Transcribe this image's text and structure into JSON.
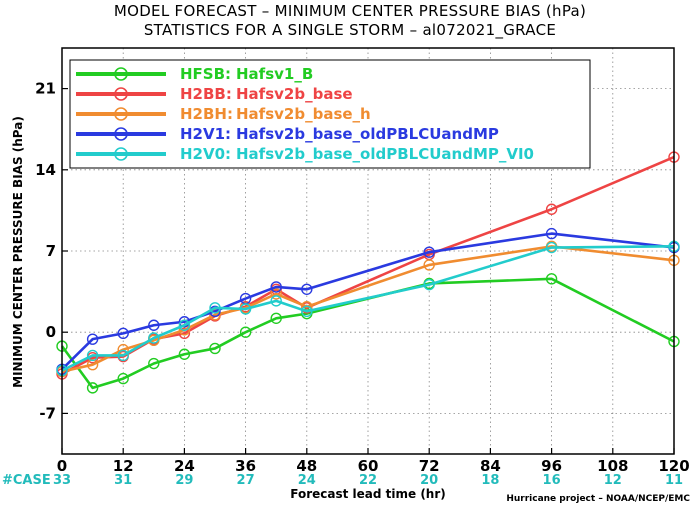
{
  "chart_data": {
    "type": "line",
    "title": "MODEL FORECAST – MINIMUM CENTER PRESSURE BIAS (hPa)",
    "subtitle": "STATISTICS FOR A SINGLE STORM – al072021_GRACE",
    "xlabel": "Forecast lead time (hr)",
    "ylabel": "MINIMUM CENTER PRESSURE BIAS (hPa)",
    "xlim": [
      0,
      120
    ],
    "ylim": [
      -10.5,
      24.5
    ],
    "x_ticks": [
      0,
      12,
      24,
      36,
      48,
      60,
      72,
      84,
      96,
      108,
      120
    ],
    "y_ticks": [
      -7,
      0,
      7,
      14,
      21
    ],
    "grid": true,
    "legend_position": "top-left",
    "case_label": "#CASE",
    "case_counts": [
      33,
      31,
      29,
      27,
      24,
      22,
      20,
      18,
      16,
      12,
      11
    ],
    "credit": "Hurricane project – NOAA/NCEP/EMC",
    "series": [
      {
        "name": "HFSB:",
        "label": "Hafsv1_B",
        "color": "#22cc22",
        "x": [
          0,
          6,
          12,
          18,
          24,
          30,
          36,
          42,
          48,
          72,
          96,
          120
        ],
        "y": [
          -1.2,
          -4.8,
          -4.0,
          -2.7,
          -1.9,
          -1.4,
          0.0,
          1.2,
          1.6,
          4.2,
          4.6,
          -0.8
        ]
      },
      {
        "name": "H2BB:",
        "label": "Hafsv2b_base",
        "color": "#ee4444",
        "x": [
          0,
          6,
          12,
          18,
          24,
          30,
          36,
          42,
          48,
          72,
          96,
          120
        ],
        "y": [
          -3.6,
          -2.2,
          -2.1,
          -0.6,
          -0.1,
          1.4,
          2.2,
          3.7,
          2.1,
          6.7,
          10.6,
          15.1
        ]
      },
      {
        "name": "H2BH:",
        "label": "Hafsv2b_base_h",
        "color": "#f08c30",
        "x": [
          0,
          6,
          12,
          18,
          24,
          30,
          36,
          42,
          48,
          72,
          96,
          120
        ],
        "y": [
          -3.4,
          -2.8,
          -1.5,
          -0.7,
          0.2,
          1.5,
          2.1,
          3.3,
          2.2,
          5.8,
          7.4,
          6.2
        ]
      },
      {
        "name": "H2V1:",
        "label": "Hafsv2b_base_oldPBLCUandMP",
        "color": "#2a3ae0",
        "x": [
          0,
          6,
          12,
          18,
          24,
          30,
          36,
          42,
          48,
          72,
          96,
          120
        ],
        "y": [
          -3.2,
          -0.6,
          -0.1,
          0.6,
          0.9,
          1.8,
          2.9,
          3.9,
          3.7,
          6.9,
          8.5,
          7.3
        ]
      },
      {
        "name": "H2V0:",
        "label": "Hafsv2b_base_oldPBLCUandMP_VI0",
        "color": "#22cccc",
        "x": [
          0,
          6,
          12,
          18,
          24,
          30,
          36,
          42,
          48,
          72,
          96,
          120
        ],
        "y": [
          -3.3,
          -2.0,
          -2.0,
          -0.5,
          0.6,
          2.1,
          2.0,
          2.7,
          1.8,
          4.1,
          7.3,
          7.4
        ]
      }
    ]
  }
}
